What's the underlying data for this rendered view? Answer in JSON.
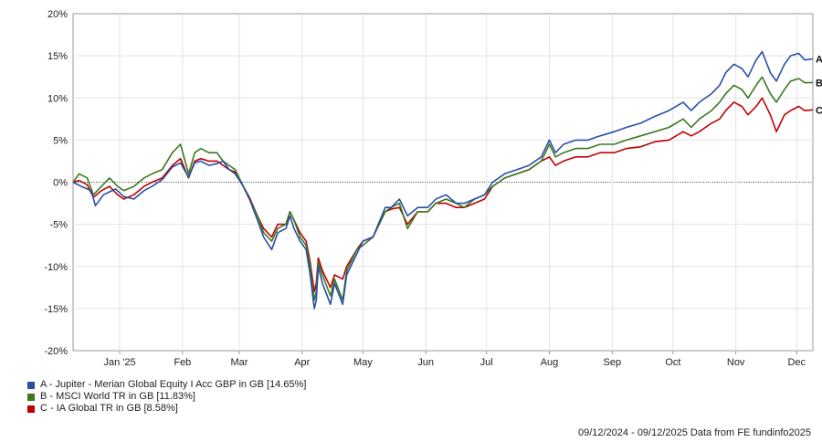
{
  "chart_data": {
    "type": "line",
    "grid": true,
    "ylim": [
      -20,
      20
    ],
    "y_ticks": [
      "20%",
      "15%",
      "10%",
      "5%",
      "0%",
      "-5%",
      "-10%",
      "-15%",
      "-20%"
    ],
    "x_tick_labels": [
      "Jan '25",
      "Feb",
      "Mar",
      "Apr",
      "May",
      "Jun",
      "Jul",
      "Aug",
      "Sep",
      "Oct",
      "Nov",
      "Dec"
    ],
    "x_tick_dates": [
      "2025-01-01",
      "2025-02-01",
      "2025-03-01",
      "2025-04-01",
      "2025-05-01",
      "2025-06-01",
      "2025-07-01",
      "2025-08-01",
      "2025-09-01",
      "2025-10-01",
      "2025-11-01",
      "2025-12-01"
    ],
    "x_range": [
      "2024-12-09",
      "2025-12-09"
    ],
    "series": [
      {
        "name": "A - Jupiter - Merian Global Equity I Acc GBP in GB [14.65%]",
        "end_label": "A",
        "color": "#2a4ea6",
        "points": [
          [
            "2024-12-09",
            0
          ],
          [
            "2024-12-13",
            -0.5
          ],
          [
            "2024-12-18",
            -1.0
          ],
          [
            "2024-12-20",
            -2.8
          ],
          [
            "2024-12-24",
            -1.5
          ],
          [
            "2024-12-30",
            -0.8
          ],
          [
            "2025-01-03",
            -1.7
          ],
          [
            "2025-01-08",
            -2.0
          ],
          [
            "2025-01-13",
            -1.0
          ],
          [
            "2025-01-17",
            -0.5
          ],
          [
            "2025-01-22",
            0.3
          ],
          [
            "2025-01-27",
            1.8
          ],
          [
            "2025-01-31",
            2.3
          ],
          [
            "2025-02-04",
            0.6
          ],
          [
            "2025-02-07",
            2.3
          ],
          [
            "2025-02-10",
            2.5
          ],
          [
            "2025-02-14",
            2.0
          ],
          [
            "2025-02-18",
            2.2
          ],
          [
            "2025-02-21",
            2.5
          ],
          [
            "2025-02-24",
            1.5
          ],
          [
            "2025-02-27",
            1.0
          ],
          [
            "2025-03-03",
            -0.5
          ],
          [
            "2025-03-06",
            -2.0
          ],
          [
            "2025-03-10",
            -4.5
          ],
          [
            "2025-03-13",
            -6.5
          ],
          [
            "2025-03-17",
            -8.0
          ],
          [
            "2025-03-20",
            -6.0
          ],
          [
            "2025-03-24",
            -5.5
          ],
          [
            "2025-03-26",
            -4.0
          ],
          [
            "2025-03-28",
            -5.5
          ],
          [
            "2025-03-31",
            -7.0
          ],
          [
            "2025-04-03",
            -8.0
          ],
          [
            "2025-04-05",
            -11.0
          ],
          [
            "2025-04-07",
            -15.0
          ],
          [
            "2025-04-08",
            -14.0
          ],
          [
            "2025-04-09",
            -10.0
          ],
          [
            "2025-04-11",
            -12.0
          ],
          [
            "2025-04-15",
            -14.5
          ],
          [
            "2025-04-17",
            -12.0
          ],
          [
            "2025-04-21",
            -14.5
          ],
          [
            "2025-04-23",
            -11.0
          ],
          [
            "2025-04-28",
            -8.5
          ],
          [
            "2025-05-01",
            -7.0
          ],
          [
            "2025-05-06",
            -6.5
          ],
          [
            "2025-05-12",
            -3.0
          ],
          [
            "2025-05-15",
            -3.0
          ],
          [
            "2025-05-19",
            -2.0
          ],
          [
            "2025-05-23",
            -4.0
          ],
          [
            "2025-05-28",
            -3.0
          ],
          [
            "2025-06-02",
            -3.0
          ],
          [
            "2025-06-06",
            -2.0
          ],
          [
            "2025-06-11",
            -1.5
          ],
          [
            "2025-06-16",
            -2.5
          ],
          [
            "2025-06-20",
            -2.5
          ],
          [
            "2025-06-25",
            -2.0
          ],
          [
            "2025-06-30",
            -1.5
          ],
          [
            "2025-07-04",
            0.0
          ],
          [
            "2025-07-10",
            1.0
          ],
          [
            "2025-07-16",
            1.5
          ],
          [
            "2025-07-22",
            2.0
          ],
          [
            "2025-07-28",
            3.0
          ],
          [
            "2025-08-01",
            5.0
          ],
          [
            "2025-08-04",
            3.5
          ],
          [
            "2025-08-08",
            4.5
          ],
          [
            "2025-08-14",
            5.0
          ],
          [
            "2025-08-20",
            5.0
          ],
          [
            "2025-08-26",
            5.5
          ],
          [
            "2025-09-02",
            6.0
          ],
          [
            "2025-09-08",
            6.5
          ],
          [
            "2025-09-15",
            7.0
          ],
          [
            "2025-09-22",
            7.8
          ],
          [
            "2025-09-29",
            8.5
          ],
          [
            "2025-10-06",
            9.5
          ],
          [
            "2025-10-10",
            8.5
          ],
          [
            "2025-10-14",
            9.5
          ],
          [
            "2025-10-20",
            10.5
          ],
          [
            "2025-10-24",
            11.5
          ],
          [
            "2025-10-27",
            13.0
          ],
          [
            "2025-10-31",
            14.0
          ],
          [
            "2025-11-04",
            13.5
          ],
          [
            "2025-11-07",
            12.5
          ],
          [
            "2025-11-11",
            14.5
          ],
          [
            "2025-11-14",
            15.5
          ],
          [
            "2025-11-18",
            13.0
          ],
          [
            "2025-11-21",
            12.0
          ],
          [
            "2025-11-25",
            14.0
          ],
          [
            "2025-11-28",
            15.0
          ],
          [
            "2025-12-02",
            15.3
          ],
          [
            "2025-12-05",
            14.5
          ],
          [
            "2025-12-09",
            14.65
          ]
        ]
      },
      {
        "name": "B - MSCI World TR in GB [11.83%]",
        "end_label": "B",
        "color": "#3b7a1e",
        "points": [
          [
            "2024-12-09",
            0
          ],
          [
            "2024-12-12",
            1.0
          ],
          [
            "2024-12-16",
            0.5
          ],
          [
            "2024-12-19",
            -1.5
          ],
          [
            "2024-12-23",
            -0.5
          ],
          [
            "2024-12-27",
            0.5
          ],
          [
            "2024-12-31",
            -0.5
          ],
          [
            "2025-01-03",
            -1.0
          ],
          [
            "2025-01-08",
            -0.5
          ],
          [
            "2025-01-13",
            0.5
          ],
          [
            "2025-01-17",
            1.0
          ],
          [
            "2025-01-22",
            1.5
          ],
          [
            "2025-01-27",
            3.5
          ],
          [
            "2025-01-31",
            4.5
          ],
          [
            "2025-02-04",
            1.0
          ],
          [
            "2025-02-07",
            3.5
          ],
          [
            "2025-02-10",
            4.0
          ],
          [
            "2025-02-14",
            3.5
          ],
          [
            "2025-02-18",
            3.5
          ],
          [
            "2025-02-21",
            2.5
          ],
          [
            "2025-02-24",
            2.0
          ],
          [
            "2025-02-27",
            1.5
          ],
          [
            "2025-03-03",
            -0.5
          ],
          [
            "2025-03-06",
            -2.0
          ],
          [
            "2025-03-10",
            -4.0
          ],
          [
            "2025-03-13",
            -6.0
          ],
          [
            "2025-03-17",
            -7.0
          ],
          [
            "2025-03-20",
            -5.5
          ],
          [
            "2025-03-24",
            -5.0
          ],
          [
            "2025-03-26",
            -3.5
          ],
          [
            "2025-03-28",
            -4.5
          ],
          [
            "2025-03-31",
            -6.5
          ],
          [
            "2025-04-03",
            -7.5
          ],
          [
            "2025-04-05",
            -10.0
          ],
          [
            "2025-04-07",
            -14.0
          ],
          [
            "2025-04-08",
            -13.0
          ],
          [
            "2025-04-09",
            -9.5
          ],
          [
            "2025-04-11",
            -11.0
          ],
          [
            "2025-04-15",
            -13.5
          ],
          [
            "2025-04-17",
            -11.5
          ],
          [
            "2025-04-21",
            -14.0
          ],
          [
            "2025-04-23",
            -10.5
          ],
          [
            "2025-04-28",
            -8.0
          ],
          [
            "2025-05-01",
            -7.5
          ],
          [
            "2025-05-06",
            -6.5
          ],
          [
            "2025-05-12",
            -3.5
          ],
          [
            "2025-05-15",
            -3.0
          ],
          [
            "2025-05-19",
            -2.5
          ],
          [
            "2025-05-23",
            -5.5
          ],
          [
            "2025-05-28",
            -3.5
          ],
          [
            "2025-06-02",
            -3.5
          ],
          [
            "2025-06-06",
            -2.5
          ],
          [
            "2025-06-11",
            -2.0
          ],
          [
            "2025-06-16",
            -2.5
          ],
          [
            "2025-06-20",
            -3.0
          ],
          [
            "2025-06-25",
            -2.0
          ],
          [
            "2025-06-30",
            -1.5
          ],
          [
            "2025-07-04",
            -0.5
          ],
          [
            "2025-07-10",
            0.5
          ],
          [
            "2025-07-16",
            1.0
          ],
          [
            "2025-07-22",
            1.5
          ],
          [
            "2025-07-28",
            2.5
          ],
          [
            "2025-08-01",
            4.5
          ],
          [
            "2025-08-04",
            3.0
          ],
          [
            "2025-08-08",
            3.5
          ],
          [
            "2025-08-14",
            4.0
          ],
          [
            "2025-08-20",
            4.0
          ],
          [
            "2025-08-26",
            4.5
          ],
          [
            "2025-09-02",
            4.5
          ],
          [
            "2025-09-08",
            5.0
          ],
          [
            "2025-09-15",
            5.5
          ],
          [
            "2025-09-22",
            6.0
          ],
          [
            "2025-09-29",
            6.5
          ],
          [
            "2025-10-06",
            7.5
          ],
          [
            "2025-10-10",
            6.5
          ],
          [
            "2025-10-14",
            7.5
          ],
          [
            "2025-10-20",
            8.5
          ],
          [
            "2025-10-24",
            9.5
          ],
          [
            "2025-10-27",
            10.5
          ],
          [
            "2025-10-31",
            11.5
          ],
          [
            "2025-11-04",
            11.0
          ],
          [
            "2025-11-07",
            10.0
          ],
          [
            "2025-11-11",
            11.5
          ],
          [
            "2025-11-14",
            12.5
          ],
          [
            "2025-11-18",
            10.5
          ],
          [
            "2025-11-21",
            9.5
          ],
          [
            "2025-11-25",
            11.0
          ],
          [
            "2025-11-28",
            12.0
          ],
          [
            "2025-12-02",
            12.3
          ],
          [
            "2025-12-05",
            11.8
          ],
          [
            "2025-12-09",
            11.83
          ]
        ]
      },
      {
        "name": "C - IA Global TR in GB [8.58%]",
        "end_label": "C",
        "color": "#c00000",
        "points": [
          [
            "2024-12-09",
            0
          ],
          [
            "2024-12-12",
            0.2
          ],
          [
            "2024-12-16",
            -0.3
          ],
          [
            "2024-12-19",
            -1.8
          ],
          [
            "2024-12-23",
            -1.0
          ],
          [
            "2024-12-27",
            -0.5
          ],
          [
            "2024-12-31",
            -1.5
          ],
          [
            "2025-01-03",
            -2.0
          ],
          [
            "2025-01-08",
            -1.5
          ],
          [
            "2025-01-13",
            -0.5
          ],
          [
            "2025-01-17",
            0.0
          ],
          [
            "2025-01-22",
            0.5
          ],
          [
            "2025-01-27",
            2.0
          ],
          [
            "2025-01-31",
            2.8
          ],
          [
            "2025-02-04",
            0.5
          ],
          [
            "2025-02-07",
            2.5
          ],
          [
            "2025-02-10",
            2.8
          ],
          [
            "2025-02-14",
            2.5
          ],
          [
            "2025-02-18",
            2.5
          ],
          [
            "2025-02-21",
            2.0
          ],
          [
            "2025-02-24",
            1.5
          ],
          [
            "2025-02-27",
            1.2
          ],
          [
            "2025-03-03",
            -0.5
          ],
          [
            "2025-03-06",
            -1.8
          ],
          [
            "2025-03-10",
            -4.0
          ],
          [
            "2025-03-13",
            -5.5
          ],
          [
            "2025-03-17",
            -6.5
          ],
          [
            "2025-03-20",
            -5.0
          ],
          [
            "2025-03-24",
            -5.0
          ],
          [
            "2025-03-26",
            -3.5
          ],
          [
            "2025-03-28",
            -4.5
          ],
          [
            "2025-03-31",
            -6.0
          ],
          [
            "2025-04-03",
            -7.0
          ],
          [
            "2025-04-05",
            -9.5
          ],
          [
            "2025-04-07",
            -13.0
          ],
          [
            "2025-04-08",
            -12.0
          ],
          [
            "2025-04-09",
            -9.0
          ],
          [
            "2025-04-11",
            -10.5
          ],
          [
            "2025-04-15",
            -12.5
          ],
          [
            "2025-04-17",
            -11.0
          ],
          [
            "2025-04-21",
            -11.5
          ],
          [
            "2025-04-23",
            -10.0
          ],
          [
            "2025-04-28",
            -8.0
          ],
          [
            "2025-05-01",
            -7.0
          ],
          [
            "2025-05-06",
            -6.5
          ],
          [
            "2025-05-12",
            -3.5
          ],
          [
            "2025-05-15",
            -3.2
          ],
          [
            "2025-05-19",
            -3.0
          ],
          [
            "2025-05-23",
            -5.0
          ],
          [
            "2025-05-28",
            -3.5
          ],
          [
            "2025-06-02",
            -3.5
          ],
          [
            "2025-06-06",
            -2.5
          ],
          [
            "2025-06-11",
            -2.5
          ],
          [
            "2025-06-16",
            -3.0
          ],
          [
            "2025-06-20",
            -3.0
          ],
          [
            "2025-06-25",
            -2.5
          ],
          [
            "2025-06-30",
            -2.0
          ],
          [
            "2025-07-04",
            -0.5
          ],
          [
            "2025-07-10",
            0.5
          ],
          [
            "2025-07-16",
            1.0
          ],
          [
            "2025-07-22",
            1.5
          ],
          [
            "2025-07-28",
            2.5
          ],
          [
            "2025-08-01",
            3.0
          ],
          [
            "2025-08-04",
            2.0
          ],
          [
            "2025-08-08",
            2.5
          ],
          [
            "2025-08-14",
            3.0
          ],
          [
            "2025-08-20",
            3.0
          ],
          [
            "2025-08-26",
            3.5
          ],
          [
            "2025-09-02",
            3.5
          ],
          [
            "2025-09-08",
            4.0
          ],
          [
            "2025-09-15",
            4.2
          ],
          [
            "2025-09-22",
            4.8
          ],
          [
            "2025-09-29",
            5.0
          ],
          [
            "2025-10-06",
            6.0
          ],
          [
            "2025-10-10",
            5.5
          ],
          [
            "2025-10-14",
            6.0
          ],
          [
            "2025-10-20",
            7.0
          ],
          [
            "2025-10-24",
            7.5
          ],
          [
            "2025-10-27",
            8.5
          ],
          [
            "2025-10-31",
            9.5
          ],
          [
            "2025-11-04",
            9.0
          ],
          [
            "2025-11-07",
            8.0
          ],
          [
            "2025-11-11",
            9.0
          ],
          [
            "2025-11-14",
            10.0
          ],
          [
            "2025-11-18",
            8.0
          ],
          [
            "2025-11-21",
            6.0
          ],
          [
            "2025-11-25",
            8.0
          ],
          [
            "2025-11-28",
            8.5
          ],
          [
            "2025-12-02",
            9.0
          ],
          [
            "2025-12-05",
            8.5
          ],
          [
            "2025-12-09",
            8.58
          ]
        ]
      }
    ]
  },
  "footer": "09/12/2024 - 09/12/2025 Data from FE fundinfo2025"
}
